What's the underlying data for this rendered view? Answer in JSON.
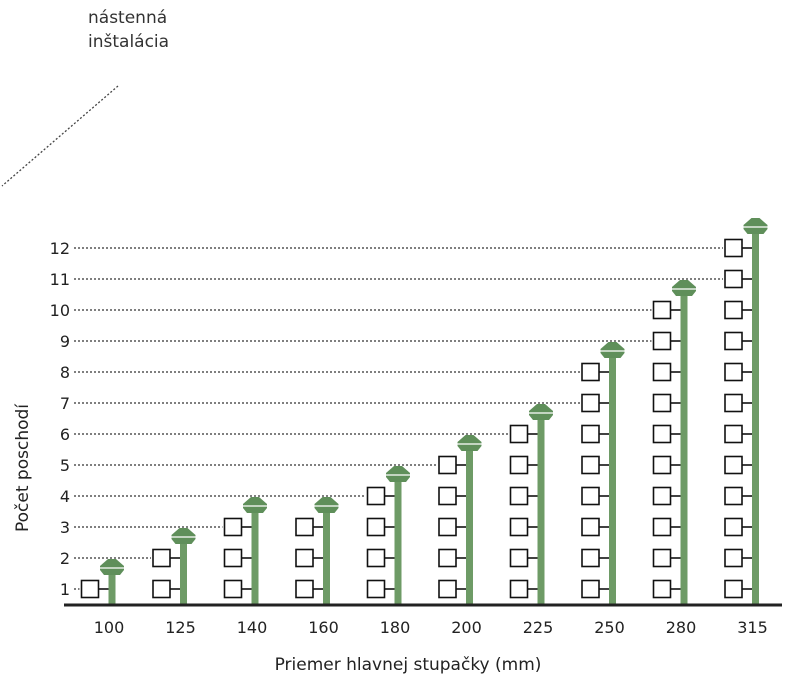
{
  "annotation": {
    "line1": "nástenná",
    "line2": "inštalácia"
  },
  "colors": {
    "riser": "#6e9b66",
    "riser_cap": "#5f8f5a",
    "outlet_border": "#111111",
    "floor_line": "#222222",
    "guide_line": "#333333"
  },
  "chart_data": {
    "type": "bar",
    "xlabel": "Priemer hlavnej stupačky (mm)",
    "ylabel": "Počet poschodí",
    "categories": [
      "100",
      "125",
      "140",
      "160",
      "180",
      "200",
      "225",
      "250",
      "280",
      "315"
    ],
    "values": [
      1,
      2,
      3,
      3,
      4,
      5,
      6,
      8,
      10,
      12
    ],
    "y_ticks": [
      "1",
      "2",
      "3",
      "4",
      "5",
      "6",
      "7",
      "8",
      "9",
      "10",
      "11",
      "12"
    ],
    "ylim": [
      0,
      12
    ],
    "grid": "dotted guide lines at each floor level up to the tallest riser",
    "legend": "none"
  }
}
